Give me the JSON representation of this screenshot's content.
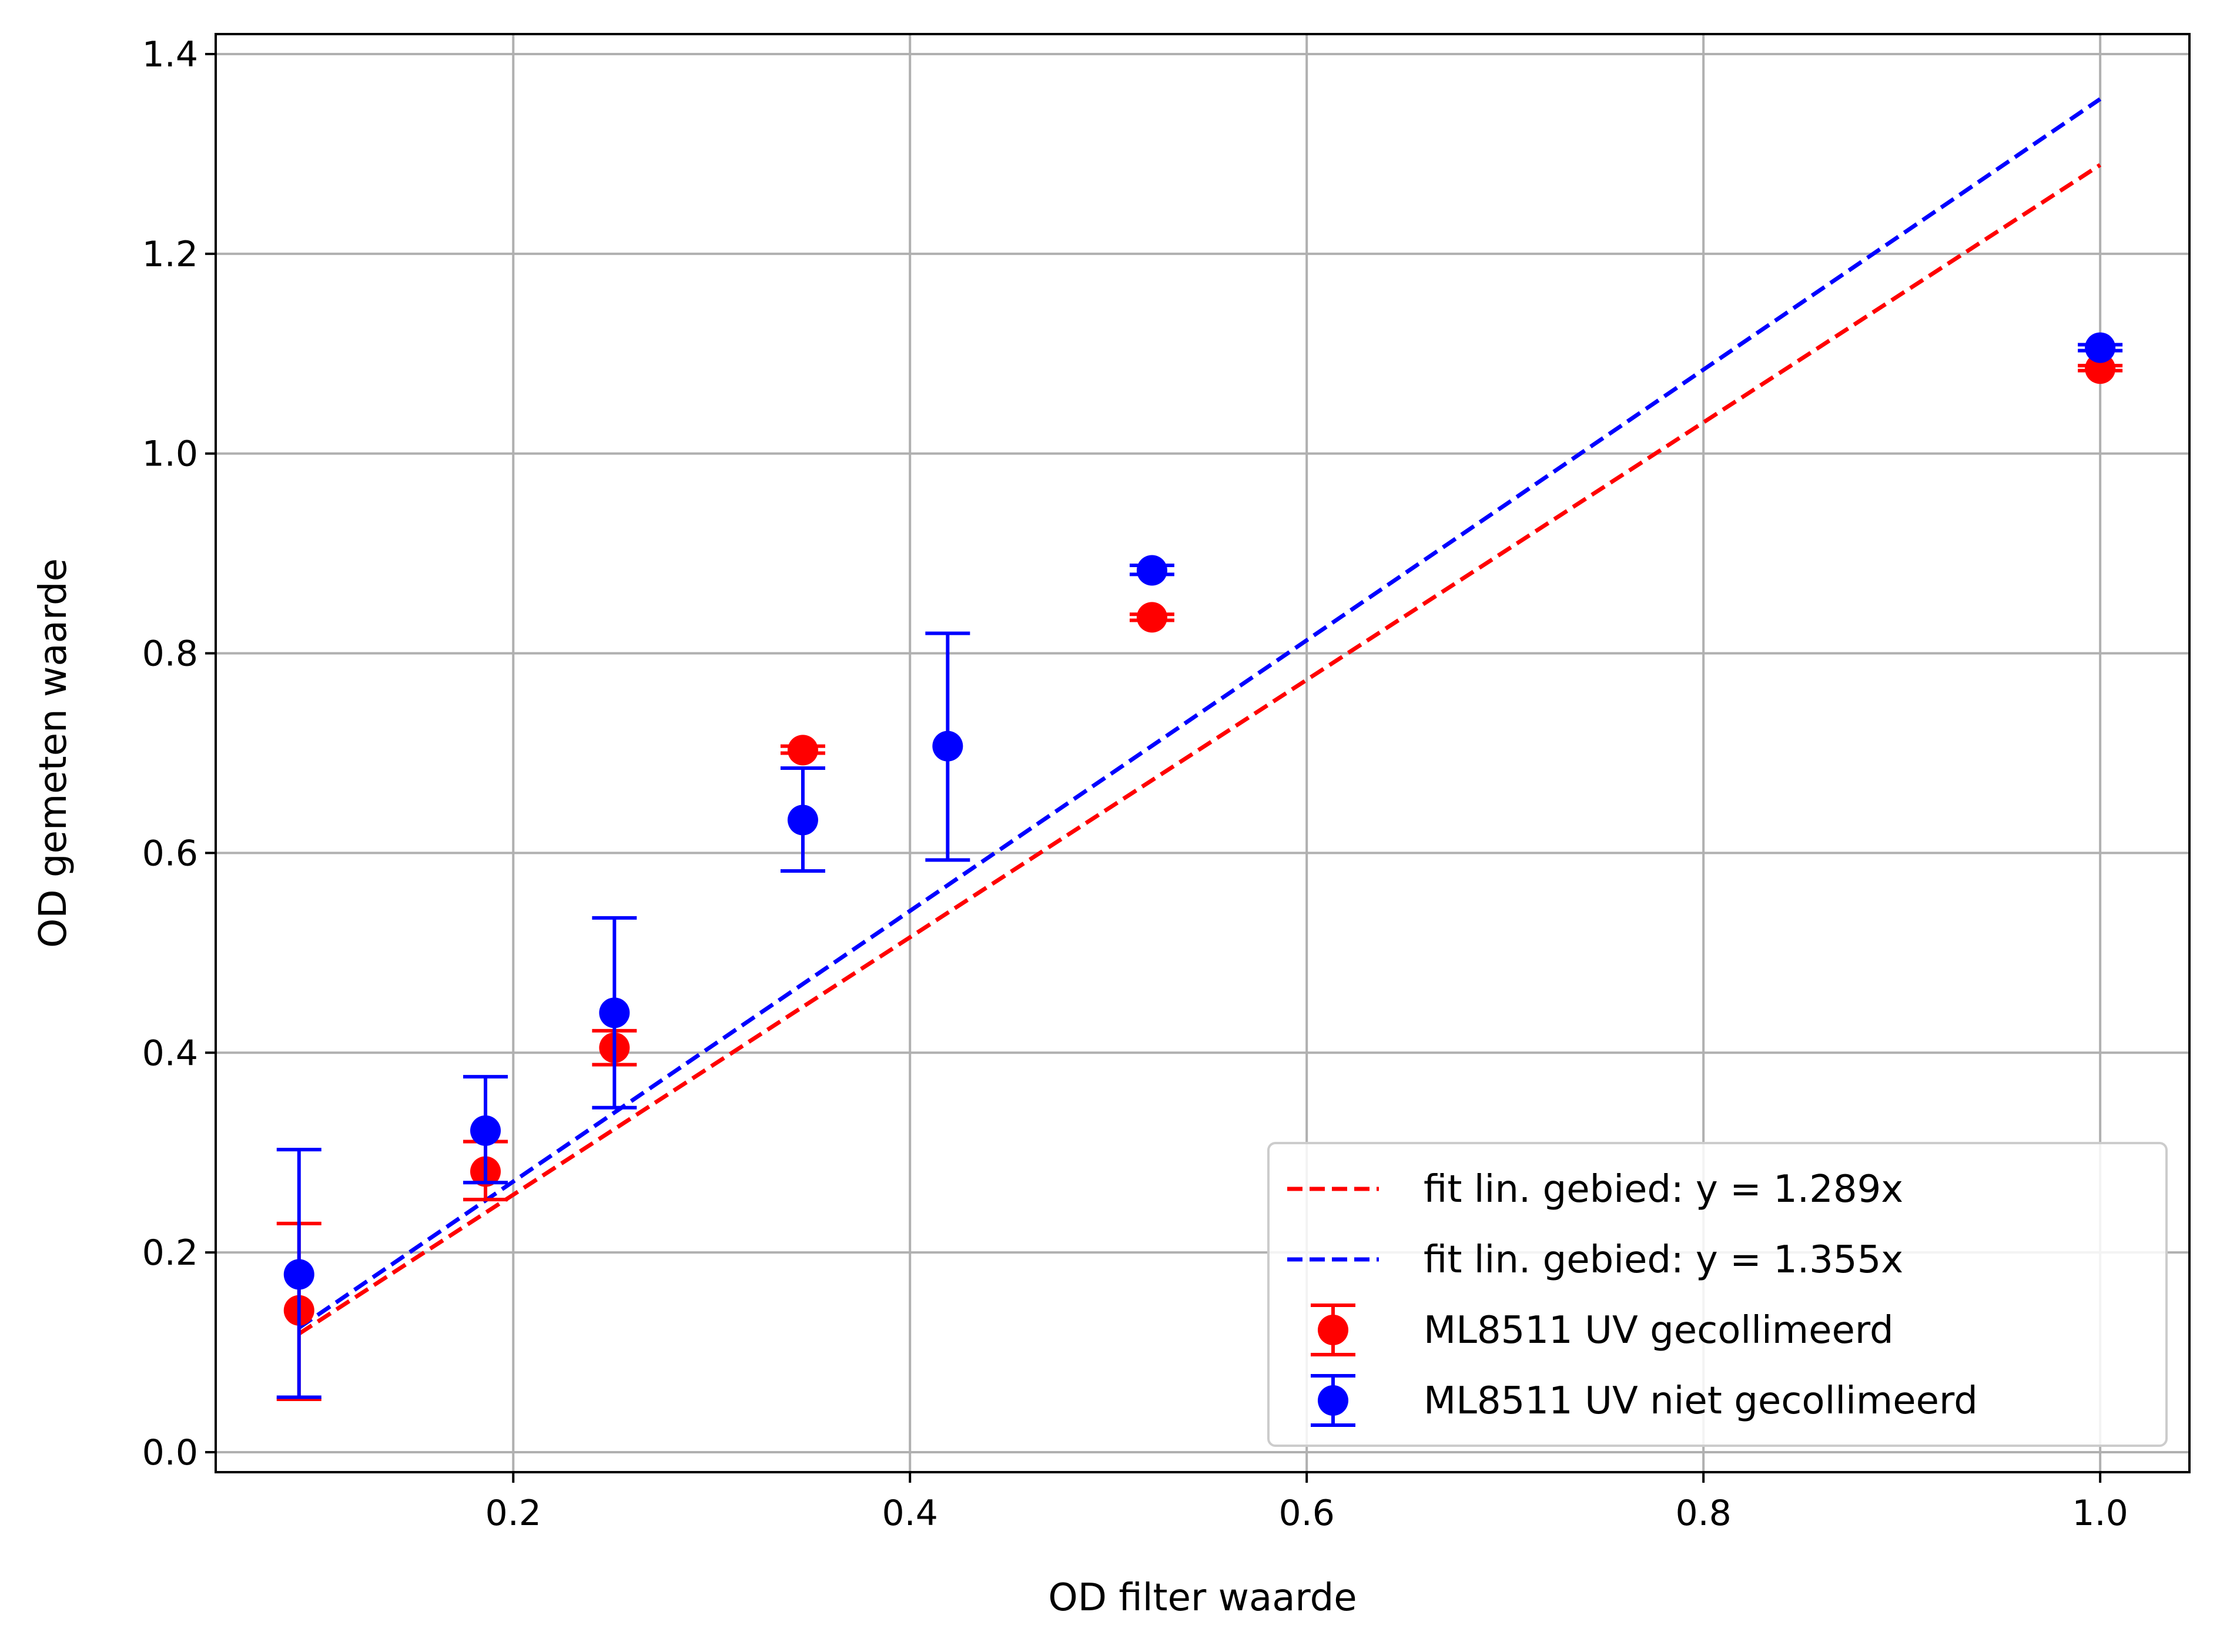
{
  "chart_data": {
    "type": "scatter",
    "title": "",
    "xlabel": "OD filter waarde",
    "ylabel": "OD gemeten waarde",
    "xlim": [
      0.05,
      1.045
    ],
    "ylim": [
      -0.02,
      1.42
    ],
    "xticks": [
      0.2,
      0.4,
      0.6,
      0.8,
      1.0
    ],
    "xtick_labels": [
      "0.2",
      "0.4",
      "0.6",
      "0.8",
      "1.0"
    ],
    "yticks": [
      0.0,
      0.2,
      0.4,
      0.6,
      0.8,
      1.0,
      1.2,
      1.4
    ],
    "ytick_labels": [
      "0.0",
      "0.2",
      "0.4",
      "0.6",
      "0.8",
      "1.0",
      "1.2",
      "1.4"
    ],
    "grid": true,
    "legend_position": "bottom-right",
    "fit_lines": [
      {
        "name": "fit lin. gebied: y = 1.289x",
        "color": "#ff0000",
        "style": "dashed",
        "slope": 1.289,
        "x_range": [
          0.092,
          1.0
        ]
      },
      {
        "name": "fit lin. gebied: y = 1.355x",
        "color": "#0000ff",
        "style": "dashed",
        "slope": 1.355,
        "x_range": [
          0.092,
          1.0
        ]
      }
    ],
    "series": [
      {
        "name": "ML8511 UV gecollimeerd",
        "color": "#ff0000",
        "x": [
          0.092,
          0.186,
          0.251,
          0.346,
          0.522,
          1.0
        ],
        "y": [
          0.142,
          0.281,
          0.405,
          0.703,
          0.836,
          1.085
        ],
        "yerr_low": [
          0.053,
          0.253,
          0.388,
          0.7,
          0.833,
          1.083
        ],
        "yerr_high": [
          0.229,
          0.311,
          0.422,
          0.707,
          0.839,
          1.088
        ]
      },
      {
        "name": "ML8511 UV niet gecollimeerd",
        "color": "#0000ff",
        "x": [
          0.092,
          0.186,
          0.251,
          0.346,
          0.419,
          0.522,
          1.0
        ],
        "y": [
          0.178,
          0.322,
          0.44,
          0.633,
          0.707,
          0.883,
          1.106
        ],
        "yerr_low": [
          0.055,
          0.27,
          0.345,
          0.582,
          0.593,
          0.879,
          1.103
        ],
        "yerr_high": [
          0.303,
          0.376,
          0.535,
          0.685,
          0.82,
          0.888,
          1.109
        ]
      }
    ]
  }
}
